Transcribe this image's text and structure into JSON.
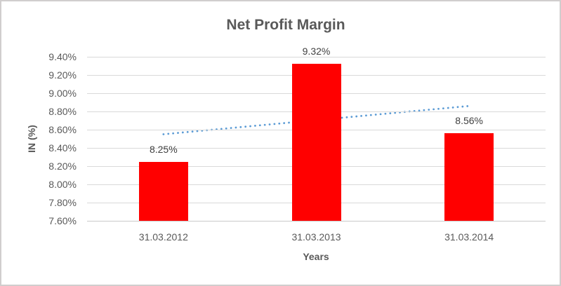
{
  "chart_data": {
    "type": "bar",
    "title": "Net Profit Margin",
    "xlabel": "Years",
    "ylabel": "IN (%)",
    "categories": [
      "31.03.2012",
      "31.03.2013",
      "31.03.2014"
    ],
    "values": [
      8.25,
      9.32,
      8.56
    ],
    "data_labels": [
      "8.25%",
      "9.32%",
      "8.56%"
    ],
    "unit": "%",
    "ylim": [
      7.6,
      9.4
    ],
    "y_tick_step": 0.2,
    "y_tick_labels": [
      "9.40%",
      "9.20%",
      "9.00%",
      "8.80%",
      "8.60%",
      "8.40%",
      "8.20%",
      "8.00%",
      "7.80%",
      "7.60%"
    ],
    "grid": true,
    "legend": "none",
    "trendline": {
      "type": "linear",
      "style": "dotted",
      "color": "#5B9BD5",
      "start_value": 8.55,
      "end_value": 8.86
    },
    "colors": {
      "bar": "#FF0000",
      "gridline": "#D9D9D9",
      "axis_line": "#C9C9C9",
      "title_text": "#595959",
      "axis_text": "#595959",
      "data_label_text": "#404040",
      "background": "#FFFFFF",
      "frame_border": "#D0CECE"
    }
  }
}
